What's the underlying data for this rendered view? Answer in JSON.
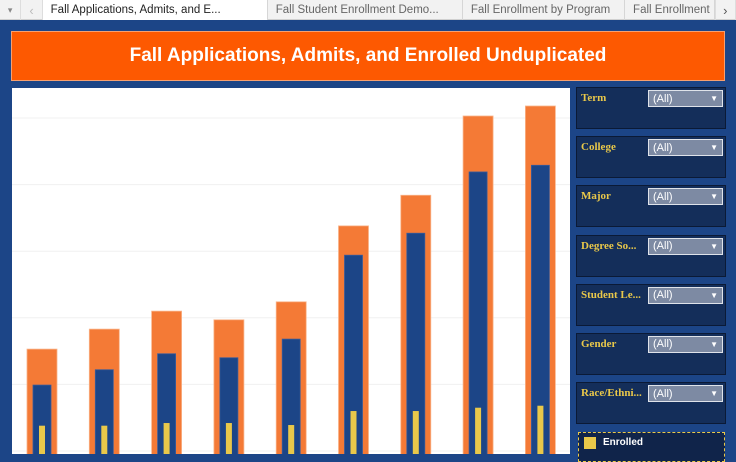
{
  "tabs": {
    "items": [
      {
        "label": "Fall Applications, Admits, and E..."
      },
      {
        "label": "Fall Student Enrollment Demo..."
      },
      {
        "label": "Fall Enrollment by Program"
      },
      {
        "label": "Fall Enrollment"
      }
    ],
    "menu_icon": "▾",
    "prev_icon": "‹",
    "next_icon": "›"
  },
  "title": "Fall Applications, Admits, and Enrolled Unduplicated",
  "filters": [
    {
      "label": "Term",
      "value": "(All)"
    },
    {
      "label": "College",
      "value": "(All)"
    },
    {
      "label": "Major",
      "value": "(All)"
    },
    {
      "label": "Degree So...",
      "value": "(All)"
    },
    {
      "label": "Student Le...",
      "value": "(All)"
    },
    {
      "label": "Gender",
      "value": "(All)"
    },
    {
      "label": "Race/Ethni...",
      "value": "(All)"
    }
  ],
  "legend": {
    "items": [
      {
        "label": "Enrolled",
        "color": "#e9c84a"
      }
    ]
  },
  "colors": {
    "applications": "#f47a36",
    "admits": "#1c4587",
    "enrolled": "#e9c84a",
    "banner": "#fd5901"
  },
  "chart_data": {
    "type": "bar",
    "grid": true,
    "ylim": [
      0,
      5.5
    ],
    "series": [
      {
        "values": [
          1.53,
          1.83,
          2.1,
          1.97,
          2.24,
          3.38,
          3.84,
          5.03,
          5.18
        ],
        "color": "#f47a36"
      },
      {
        "values": [
          0.99,
          1.22,
          1.46,
          1.4,
          1.68,
          2.94,
          3.27,
          4.19,
          4.29
        ],
        "color": "#1c4587"
      },
      {
        "name": "Enrolled",
        "values": [
          0.38,
          0.38,
          0.42,
          0.42,
          0.39,
          0.6,
          0.6,
          0.65,
          0.68
        ],
        "color": "#e9c84a"
      }
    ]
  }
}
